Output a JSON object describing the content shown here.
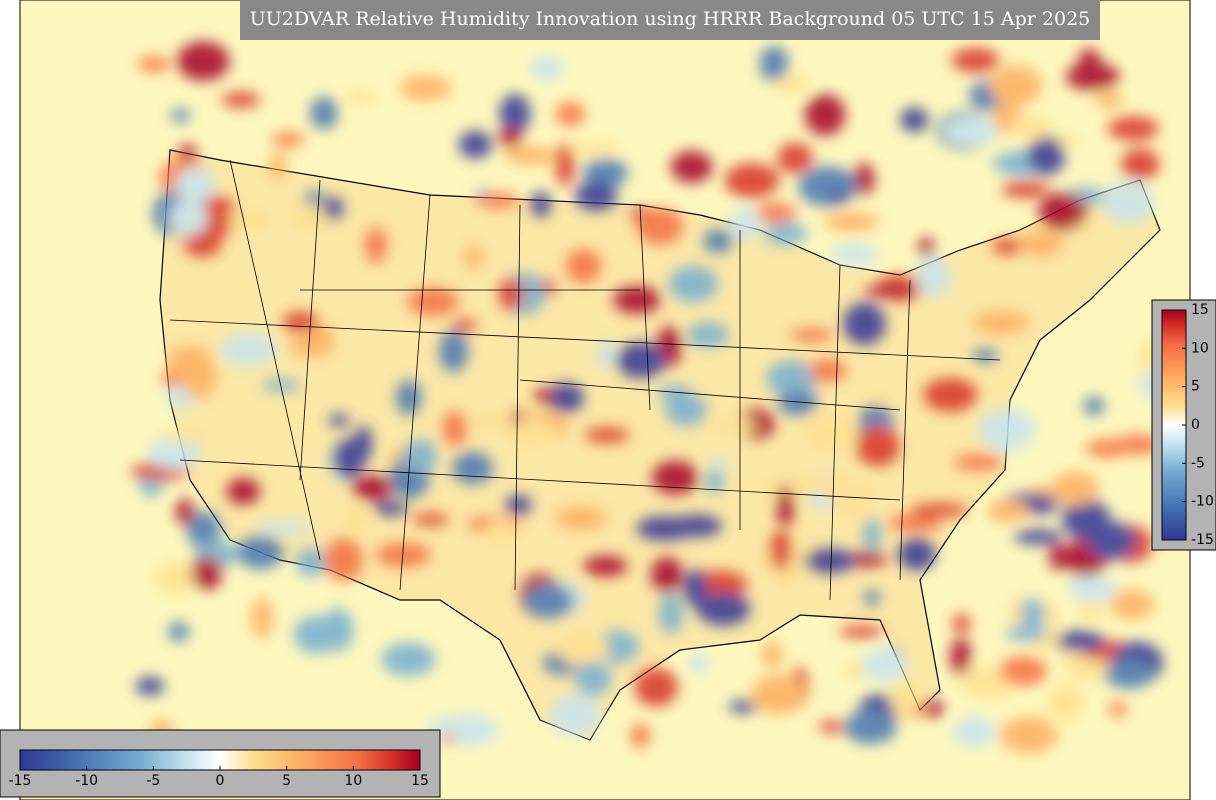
{
  "title": "UU2DVAR Relative Humidity Innovation using HRRR Background 05 UTC 15 Apr 2025",
  "colorbars": {
    "vertical": {
      "ticks": [
        15,
        10,
        5,
        0,
        -5,
        -10,
        -15
      ]
    },
    "horizontal": {
      "ticks": [
        -15,
        -10,
        -5,
        0,
        5,
        10,
        15
      ]
    }
  }
}
